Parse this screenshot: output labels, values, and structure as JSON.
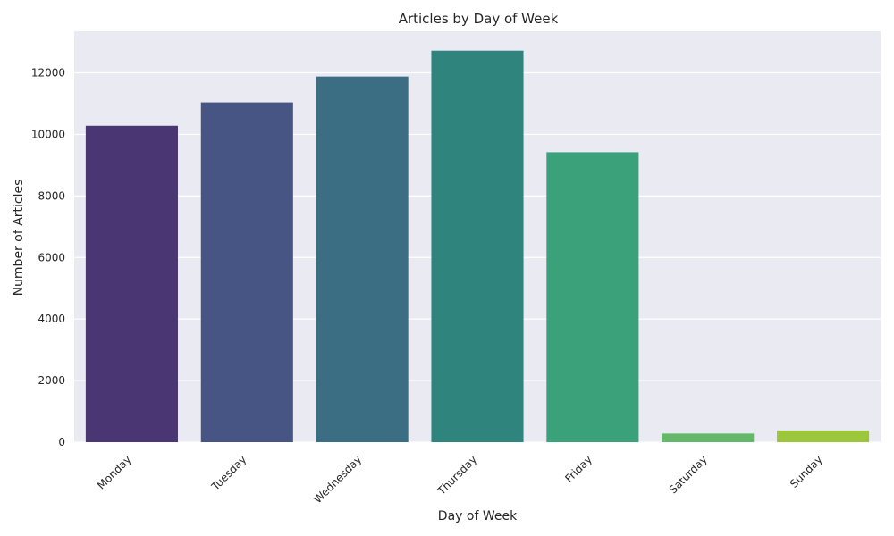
{
  "chart_data": {
    "type": "bar",
    "title": "Articles by Day of Week",
    "xlabel": "Day of Week",
    "ylabel": "Number of Articles",
    "categories": [
      "Monday",
      "Tuesday",
      "Wednesday",
      "Thursday",
      "Friday",
      "Saturday",
      "Sunday"
    ],
    "values": [
      10280,
      11040,
      11880,
      12720,
      9420,
      280,
      380
    ],
    "colors": [
      "#4a3672",
      "#465584",
      "#3b6e82",
      "#2f847d",
      "#3ba17b",
      "#63b869",
      "#9cc73d"
    ],
    "ylim": [
      0,
      13350
    ],
    "yticks": [
      0,
      2000,
      4000,
      6000,
      8000,
      10000,
      12000
    ],
    "ytick_labels": [
      "0",
      "2000",
      "4000",
      "6000",
      "8000",
      "10000",
      "12000"
    ],
    "grid": true,
    "grid_axis": "y",
    "plot_background": "#eaeaf2",
    "grid_color": "#ffffff",
    "text_color": "#262626"
  }
}
